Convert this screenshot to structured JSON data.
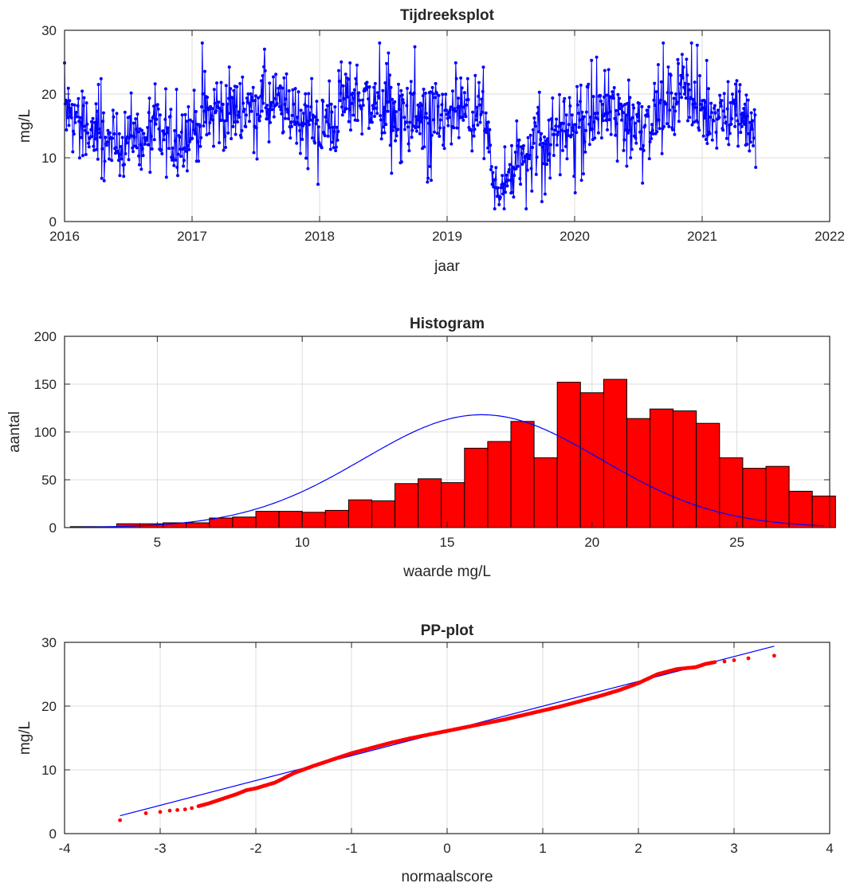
{
  "chart_data": [
    {
      "type": "line",
      "title": "Tijdreeksplot",
      "xlabel": "jaar",
      "ylabel": "mg/L",
      "xlim": [
        2016,
        2022
      ],
      "ylim": [
        0,
        30
      ],
      "xticks": [
        2016,
        2017,
        2018,
        2019,
        2020,
        2021,
        2022
      ],
      "yticks": [
        0,
        10,
        20,
        30
      ],
      "grid": true,
      "color": "#0000ff",
      "marker": "dot",
      "monthly_means": {
        "x": [
          2016.04,
          2016.12,
          2016.21,
          2016.29,
          2016.37,
          2016.46,
          2016.54,
          2016.62,
          2016.71,
          2016.79,
          2016.87,
          2016.96,
          2017.04,
          2017.12,
          2017.21,
          2017.29,
          2017.37,
          2017.46,
          2017.54,
          2017.62,
          2017.71,
          2017.79,
          2017.87,
          2017.96,
          2018.04,
          2018.12,
          2018.21,
          2018.29,
          2018.37,
          2018.46,
          2018.54,
          2018.62,
          2018.71,
          2018.79,
          2018.87,
          2018.96,
          2019.04,
          2019.12,
          2019.21,
          2019.29,
          2019.37,
          2019.46,
          2019.54,
          2019.62,
          2019.71,
          2019.79,
          2019.87,
          2019.96,
          2020.04,
          2020.12,
          2020.21,
          2020.29,
          2020.37,
          2020.46,
          2020.54,
          2020.62,
          2020.71,
          2020.79,
          2020.87,
          2020.96,
          2021.04,
          2021.12,
          2021.21,
          2021.29,
          2021.37
        ],
        "y": [
          17,
          16,
          14,
          12,
          12,
          12,
          13,
          12,
          14,
          13,
          13,
          14,
          15,
          16,
          17,
          17,
          18,
          18,
          19,
          18,
          18,
          17,
          16,
          15,
          15,
          16,
          19,
          20,
          19,
          18,
          17,
          17,
          16,
          16,
          16,
          16,
          16,
          17,
          16,
          16,
          6,
          6,
          8,
          11,
          13,
          14,
          15,
          15,
          16,
          16,
          17,
          17,
          17,
          16,
          16,
          16,
          17,
          20,
          22,
          17,
          17,
          17,
          17,
          19,
          15
        ],
        "y_min": 2,
        "y_max": 28
      }
    },
    {
      "type": "bar",
      "title": "Histogram",
      "xlabel": "waarde mg/L",
      "ylabel": "aantal",
      "xlim": [
        1.8,
        28.2
      ],
      "ylim": [
        0,
        200
      ],
      "xticks": [
        5,
        10,
        15,
        20,
        25
      ],
      "yticks": [
        0,
        50,
        100,
        150,
        200
      ],
      "grid": true,
      "bar_color": "#ff0000",
      "bin_width": 0.8,
      "bin_centers": [
        2.4,
        3.2,
        4.0,
        4.8,
        5.6,
        6.4,
        7.2,
        8.0,
        8.8,
        9.6,
        10.4,
        11.2,
        12.0,
        12.8,
        13.6,
        14.4,
        15.2,
        16.0,
        16.8,
        17.6,
        18.4,
        19.2,
        20.0,
        20.8,
        21.6,
        22.4,
        23.2,
        24.0,
        24.8,
        25.6,
        26.4,
        27.2,
        28.0
      ],
      "values": [
        1,
        1,
        4,
        4,
        5,
        5,
        10,
        11,
        17,
        17,
        16,
        18,
        29,
        28,
        46,
        51,
        47,
        83,
        90,
        111,
        73,
        152,
        141,
        155,
        114,
        124,
        122,
        109,
        73,
        62,
        64,
        38,
        33
      ],
      "fit_curve": {
        "type": "normal",
        "mean": 16.2,
        "std": 4.1,
        "peak": 118,
        "color": "#0000ff"
      }
    },
    {
      "type": "scatter",
      "title": "PP-plot",
      "xlabel": "normaalscore",
      "ylabel": "mg/L",
      "xlim": [
        -4,
        4
      ],
      "ylim": [
        0,
        30
      ],
      "xticks": [
        -4,
        -3,
        -2,
        -1,
        0,
        1,
        2,
        3,
        4
      ],
      "yticks": [
        0,
        10,
        20,
        30
      ],
      "grid": true,
      "point_color": "#ff0000",
      "points": {
        "x": [
          -3.42,
          -3.15,
          -3.0,
          -2.9,
          -2.82,
          -2.74,
          -2.67,
          -2.6,
          -2.5,
          -2.4,
          -2.3,
          -2.2,
          -2.1,
          -2.0,
          -1.8,
          -1.6,
          -1.4,
          -1.2,
          -1.0,
          -0.8,
          -0.6,
          -0.4,
          -0.2,
          0.0,
          0.2,
          0.4,
          0.6,
          0.8,
          1.0,
          1.2,
          1.4,
          1.6,
          1.8,
          2.0,
          2.2,
          2.4,
          2.6,
          2.7,
          2.8,
          2.9,
          3.0,
          3.15,
          3.42
        ],
        "y": [
          2.1,
          3.2,
          3.4,
          3.6,
          3.7,
          3.8,
          4.0,
          4.3,
          4.7,
          5.2,
          5.7,
          6.2,
          6.8,
          7.1,
          8.0,
          9.5,
          10.6,
          11.6,
          12.6,
          13.4,
          14.2,
          14.9,
          15.5,
          16.1,
          16.7,
          17.3,
          17.9,
          18.6,
          19.3,
          20.0,
          20.8,
          21.6,
          22.5,
          23.6,
          25.0,
          25.8,
          26.1,
          26.6,
          26.9,
          27.0,
          27.2,
          27.5,
          27.9
        ]
      },
      "reference_line": {
        "x": [
          -3.42,
          3.42
        ],
        "y": [
          2.8,
          29.4
        ],
        "color": "#0000ff"
      }
    }
  ]
}
